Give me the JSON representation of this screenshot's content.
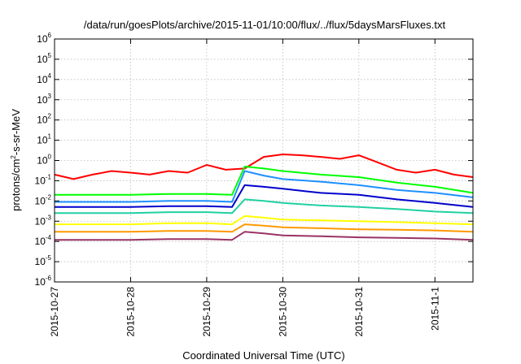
{
  "chart_data": {
    "type": "line",
    "title": "/data/run/goesPlots/archive/2015-11-01/10:00/flux/../flux/5daysMarsFluxes.txt",
    "xlabel": "Coordinated Universal Time (UTC)",
    "ylabel": "protons/cm²-s-sr-MeV",
    "ylabel_parts": {
      "before": "protons/cm",
      "sup": "2",
      "after": "-s-sr-MeV"
    },
    "y_scale": "log",
    "ylim": [
      1e-06,
      1000000.0
    ],
    "xlim": [
      "2015-10-27T00:00",
      "2015-11-01T12:00"
    ],
    "grid": true,
    "legend": "none",
    "x_ticks": [
      {
        "label": "2015-10-27",
        "value": "2015-10-27T00:00"
      },
      {
        "label": "2015-10-28",
        "value": "2015-10-28T00:00"
      },
      {
        "label": "2015-10-29",
        "value": "2015-10-29T00:00"
      },
      {
        "label": "2015-10-30",
        "value": "2015-10-30T00:00"
      },
      {
        "label": "2015-10-31",
        "value": "2015-10-31T00:00"
      },
      {
        "label": "2015-11-1",
        "value": "2015-11-01T00:00"
      }
    ],
    "y_ticks": [
      {
        "base": "10",
        "exp": "-6",
        "value": 1e-06
      },
      {
        "base": "10",
        "exp": "-5",
        "value": 1e-05
      },
      {
        "base": "10",
        "exp": "-4",
        "value": 0.0001
      },
      {
        "base": "10",
        "exp": "-3",
        "value": 0.001
      },
      {
        "base": "10",
        "exp": "-2",
        "value": 0.01
      },
      {
        "base": "10",
        "exp": "-1",
        "value": 0.1
      },
      {
        "base": "10",
        "exp": "0",
        "value": 1
      },
      {
        "base": "10",
        "exp": "1",
        "value": 10
      },
      {
        "base": "10",
        "exp": "2",
        "value": 100
      },
      {
        "base": "10",
        "exp": "3",
        "value": 1000
      },
      {
        "base": "10",
        "exp": "4",
        "value": 10000
      },
      {
        "base": "10",
        "exp": "5",
        "value": 100000
      },
      {
        "base": "10",
        "exp": "6",
        "value": 1000000
      }
    ],
    "series": [
      {
        "color": "#ff0000",
        "x": [
          "2015-10-27T00:00",
          "2015-10-27T06:00",
          "2015-10-27T12:00",
          "2015-10-27T18:00",
          "2015-10-28T00:00",
          "2015-10-28T06:00",
          "2015-10-28T12:00",
          "2015-10-28T18:00",
          "2015-10-29T00:00",
          "2015-10-29T06:00",
          "2015-10-29T12:00",
          "2015-10-29T18:00",
          "2015-10-30T00:00",
          "2015-10-30T06:00",
          "2015-10-30T12:00",
          "2015-10-30T18:00",
          "2015-10-31T00:00",
          "2015-10-31T06:00",
          "2015-10-31T12:00",
          "2015-10-31T18:00",
          "2015-11-01T00:00",
          "2015-11-01T06:00",
          "2015-11-01T12:00"
        ],
        "y": [
          0.2,
          0.12,
          0.2,
          0.3,
          0.25,
          0.2,
          0.3,
          0.25,
          0.6,
          0.35,
          0.4,
          1.5,
          2.0,
          1.8,
          1.5,
          1.2,
          1.8,
          0.8,
          0.35,
          0.25,
          0.35,
          0.2,
          0.15
        ]
      },
      {
        "color": "#00ff00",
        "x": [
          "2015-10-27T00:00",
          "2015-10-27T12:00",
          "2015-10-28T00:00",
          "2015-10-28T12:00",
          "2015-10-29T00:00",
          "2015-10-29T08:00",
          "2015-10-29T12:00",
          "2015-10-29T18:00",
          "2015-10-30T00:00",
          "2015-10-30T12:00",
          "2015-10-31T00:00",
          "2015-10-31T12:00",
          "2015-11-01T00:00",
          "2015-11-01T12:00"
        ],
        "y": [
          0.02,
          0.02,
          0.02,
          0.022,
          0.022,
          0.02,
          0.5,
          0.4,
          0.3,
          0.2,
          0.15,
          0.08,
          0.05,
          0.025
        ]
      },
      {
        "color": "#1e90ff",
        "x": [
          "2015-10-27T00:00",
          "2015-10-27T12:00",
          "2015-10-28T00:00",
          "2015-10-28T12:00",
          "2015-10-29T00:00",
          "2015-10-29T08:00",
          "2015-10-29T12:00",
          "2015-10-29T18:00",
          "2015-10-30T00:00",
          "2015-10-30T12:00",
          "2015-10-31T00:00",
          "2015-10-31T12:00",
          "2015-11-01T00:00",
          "2015-11-01T12:00"
        ],
        "y": [
          0.009,
          0.009,
          0.009,
          0.01,
          0.01,
          0.009,
          0.3,
          0.18,
          0.12,
          0.09,
          0.06,
          0.035,
          0.025,
          0.015
        ]
      },
      {
        "color": "#0000cc",
        "x": [
          "2015-10-27T00:00",
          "2015-10-27T12:00",
          "2015-10-28T00:00",
          "2015-10-28T12:00",
          "2015-10-29T00:00",
          "2015-10-29T08:00",
          "2015-10-29T12:00",
          "2015-10-29T18:00",
          "2015-10-30T00:00",
          "2015-10-30T12:00",
          "2015-10-31T00:00",
          "2015-10-31T12:00",
          "2015-11-01T00:00",
          "2015-11-01T12:00"
        ],
        "y": [
          0.005,
          0.005,
          0.005,
          0.0055,
          0.0055,
          0.005,
          0.06,
          0.05,
          0.04,
          0.025,
          0.02,
          0.012,
          0.008,
          0.005
        ]
      },
      {
        "color": "#20d0a0",
        "x": [
          "2015-10-27T00:00",
          "2015-10-27T12:00",
          "2015-10-28T00:00",
          "2015-10-28T12:00",
          "2015-10-29T00:00",
          "2015-10-29T08:00",
          "2015-10-29T12:00",
          "2015-10-29T18:00",
          "2015-10-30T00:00",
          "2015-10-30T12:00",
          "2015-10-31T00:00",
          "2015-10-31T12:00",
          "2015-11-01T00:00",
          "2015-11-01T12:00"
        ],
        "y": [
          0.0025,
          0.0025,
          0.0025,
          0.0028,
          0.0028,
          0.0025,
          0.012,
          0.01,
          0.008,
          0.006,
          0.005,
          0.004,
          0.003,
          0.0025
        ]
      },
      {
        "color": "#ffff00",
        "x": [
          "2015-10-27T00:00",
          "2015-10-27T12:00",
          "2015-10-28T00:00",
          "2015-10-28T12:00",
          "2015-10-29T00:00",
          "2015-10-29T08:00",
          "2015-10-29T12:00",
          "2015-10-29T18:00",
          "2015-10-30T00:00",
          "2015-10-30T12:00",
          "2015-10-31T00:00",
          "2015-10-31T12:00",
          "2015-11-01T00:00",
          "2015-11-01T12:00"
        ],
        "y": [
          0.0007,
          0.0007,
          0.0007,
          0.0008,
          0.0008,
          0.0007,
          0.0018,
          0.0015,
          0.0012,
          0.0011,
          0.001,
          0.0009,
          0.0008,
          0.0007
        ]
      },
      {
        "color": "#ff9900",
        "x": [
          "2015-10-27T00:00",
          "2015-10-27T12:00",
          "2015-10-28T00:00",
          "2015-10-28T12:00",
          "2015-10-29T00:00",
          "2015-10-29T08:00",
          "2015-10-29T12:00",
          "2015-10-29T18:00",
          "2015-10-30T00:00",
          "2015-10-30T12:00",
          "2015-10-31T00:00",
          "2015-10-31T12:00",
          "2015-11-01T00:00",
          "2015-11-01T12:00"
        ],
        "y": [
          0.0003,
          0.0003,
          0.0003,
          0.00033,
          0.00033,
          0.0003,
          0.0007,
          0.0006,
          0.0005,
          0.00045,
          0.0004,
          0.00038,
          0.00035,
          0.0003
        ]
      },
      {
        "color": "#993366",
        "x": [
          "2015-10-27T00:00",
          "2015-10-27T12:00",
          "2015-10-28T00:00",
          "2015-10-28T12:00",
          "2015-10-29T00:00",
          "2015-10-29T08:00",
          "2015-10-29T12:00",
          "2015-10-29T18:00",
          "2015-10-30T00:00",
          "2015-10-30T12:00",
          "2015-10-31T00:00",
          "2015-10-31T12:00",
          "2015-11-01T00:00",
          "2015-11-01T12:00"
        ],
        "y": [
          0.00012,
          0.00012,
          0.00012,
          0.00013,
          0.00013,
          0.00012,
          0.0003,
          0.00025,
          0.0002,
          0.00018,
          0.00016,
          0.00015,
          0.00014,
          0.00012
        ]
      }
    ]
  }
}
